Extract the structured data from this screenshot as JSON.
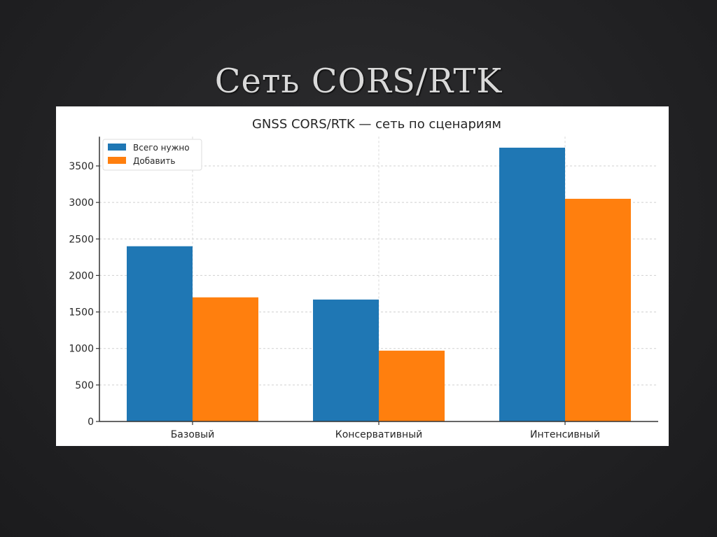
{
  "slide": {
    "title": "Сеть CORS/RTK"
  },
  "chart_data": {
    "type": "bar",
    "title": "GNSS CORS/RTK — сеть по сценариям",
    "xlabel": "",
    "ylabel": "",
    "categories": [
      "Базовый",
      "Консервативный",
      "Интенсивный"
    ],
    "series": [
      {
        "name": "Всего нужно",
        "color": "#1f77b4",
        "values": [
          2400,
          1670,
          3750
        ]
      },
      {
        "name": "Добавить",
        "color": "#ff7f0e",
        "values": [
          1700,
          970,
          3050
        ]
      }
    ],
    "ylim": [
      0,
      3900
    ],
    "yticks": [
      0,
      500,
      1000,
      1500,
      2000,
      2500,
      3000,
      3500
    ],
    "grid": true,
    "legend_position": "upper left"
  }
}
